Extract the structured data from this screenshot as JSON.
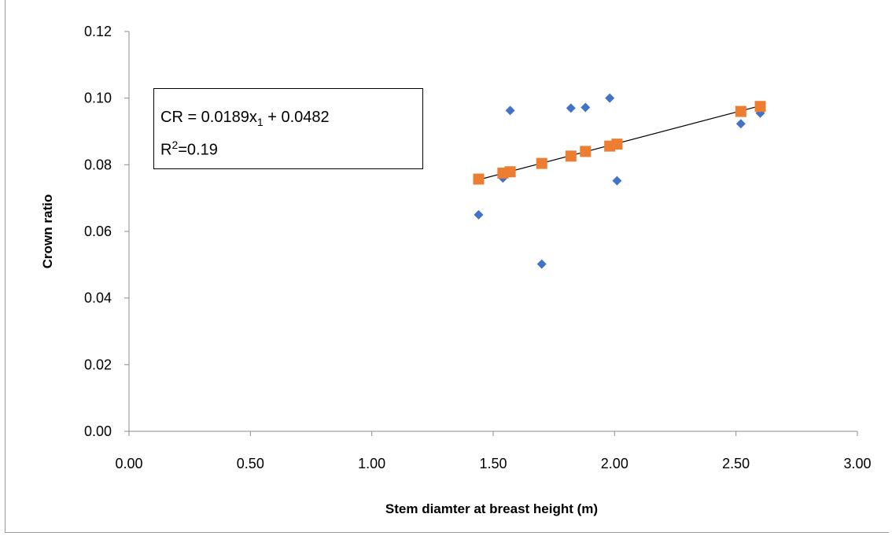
{
  "chart_data": {
    "type": "scatter",
    "title": "",
    "xlabel": "Stem diamter at breast height (m)",
    "ylabel": "Crown ratio",
    "xlim": [
      0,
      3
    ],
    "ylim": [
      0,
      0.12
    ],
    "x_ticks": [
      "0.00",
      "0.50",
      "1.00",
      "1.50",
      "2.00",
      "2.50",
      "3.00"
    ],
    "y_ticks": [
      "0.00",
      "0.02",
      "0.04",
      "0.06",
      "0.08",
      "0.10",
      "0.12"
    ],
    "grid": false,
    "legend": "none",
    "series": [
      {
        "marker": "diamond",
        "color": "#4472C4",
        "points": [
          {
            "x": 1.44,
            "y": 0.065
          },
          {
            "x": 1.54,
            "y": 0.076
          },
          {
            "x": 1.57,
            "y": 0.0963
          },
          {
            "x": 1.7,
            "y": 0.0502
          },
          {
            "x": 1.82,
            "y": 0.097
          },
          {
            "x": 1.88,
            "y": 0.0972
          },
          {
            "x": 1.98,
            "y": 0.1
          },
          {
            "x": 2.01,
            "y": 0.0752
          },
          {
            "x": 2.52,
            "y": 0.0923
          },
          {
            "x": 2.6,
            "y": 0.0955
          }
        ]
      },
      {
        "marker": "square",
        "color": "#ED7D31",
        "points": [
          {
            "x": 1.44,
            "y": 0.0757
          },
          {
            "x": 1.54,
            "y": 0.0775
          },
          {
            "x": 1.57,
            "y": 0.0779
          },
          {
            "x": 1.7,
            "y": 0.0804
          },
          {
            "x": 1.82,
            "y": 0.0826
          },
          {
            "x": 1.88,
            "y": 0.084
          },
          {
            "x": 1.98,
            "y": 0.0856
          },
          {
            "x": 2.01,
            "y": 0.0862
          },
          {
            "x": 2.52,
            "y": 0.096
          },
          {
            "x": 2.6,
            "y": 0.0975
          }
        ]
      }
    ],
    "trendline": {
      "color": "#000000",
      "from": {
        "x": 1.44,
        "y": 0.0755
      },
      "to": {
        "x": 2.6,
        "y": 0.0977
      }
    },
    "annotation": {
      "line1_prefix": "CR = 0.0189x",
      "line1_sub": "1",
      "line1_suffix": " + 0.0482",
      "line2_prefix": "R",
      "line2_sup": "2",
      "line2_suffix": "=0.19"
    }
  }
}
